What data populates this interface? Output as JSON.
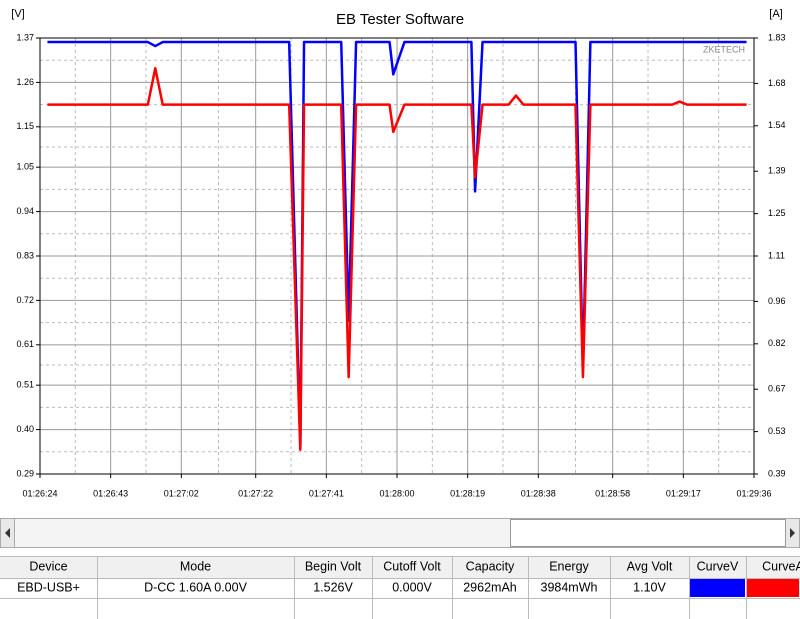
{
  "chart_data": {
    "type": "line",
    "title": "EB Tester Software",
    "y_label": "[V]",
    "y2_label": "[A]",
    "watermark": "ZKETECH",
    "x": [
      "01:26:26",
      "01:26:53",
      "01:26:55",
      "01:26:57",
      "01:27:31",
      "01:27:34",
      "01:27:35",
      "01:27:45",
      "01:27:47",
      "01:27:49",
      "01:27:58",
      "01:27:59",
      "01:28:02",
      "01:28:20",
      "01:28:21",
      "01:28:23",
      "01:28:30",
      "01:28:32",
      "01:28:34",
      "01:28:48",
      "01:28:50",
      "01:28:52",
      "01:29:14",
      "01:29:16",
      "01:29:18",
      "01:29:34"
    ],
    "series": [
      {
        "name": "CurveV",
        "color": "#0000ff",
        "values": [
          1.36,
          1.36,
          1.35,
          1.36,
          1.36,
          0.36,
          1.36,
          1.36,
          0.67,
          1.36,
          1.36,
          1.28,
          1.36,
          1.36,
          0.99,
          1.36,
          1.36,
          1.36,
          1.36,
          1.36,
          0.55,
          1.36,
          1.36,
          1.36,
          1.36,
          1.36
        ]
      },
      {
        "name": "CurveA",
        "color": "#ff0000",
        "axis": "y2",
        "values": [
          1.61,
          1.61,
          1.73,
          1.61,
          1.61,
          0.47,
          1.61,
          1.61,
          0.71,
          1.61,
          1.61,
          1.52,
          1.61,
          1.61,
          1.37,
          1.61,
          1.61,
          1.64,
          1.61,
          1.61,
          0.71,
          1.61,
          1.61,
          1.62,
          1.61,
          1.61
        ]
      }
    ],
    "xlim": [
      "01:26:24",
      "01:29:36"
    ],
    "xticks": [
      "01:26:24",
      "01:26:43",
      "01:27:02",
      "01:27:22",
      "01:27:41",
      "01:28:00",
      "01:28:19",
      "01:28:38",
      "01:28:58",
      "01:29:17",
      "01:29:36"
    ],
    "ylim": [
      0.29,
      1.37
    ],
    "yticks": [
      {
        "value": 1.37,
        "label": "1.37"
      },
      {
        "value": 1.26,
        "label": "1.26"
      },
      {
        "value": 1.15,
        "label": "1.15"
      },
      {
        "value": 1.05,
        "label": "1.05"
      },
      {
        "value": 0.94,
        "label": "0.94"
      },
      {
        "value": 0.83,
        "label": "0.83"
      },
      {
        "value": 0.72,
        "label": "0.72"
      },
      {
        "value": 0.61,
        "label": "0.61"
      },
      {
        "value": 0.51,
        "label": "0.51"
      },
      {
        "value": 0.4,
        "label": "0.40"
      },
      {
        "value": 0.29,
        "label": "0.29"
      }
    ],
    "y2lim": [
      0.39,
      1.83
    ],
    "y2ticks": [
      {
        "value": 1.83,
        "label": "1.83"
      },
      {
        "value": 1.68,
        "label": "1.68"
      },
      {
        "value": 1.54,
        "label": "1.54"
      },
      {
        "value": 1.39,
        "label": "1.39"
      },
      {
        "value": 1.25,
        "label": "1.25"
      },
      {
        "value": 1.11,
        "label": "1.11"
      },
      {
        "value": 0.96,
        "label": "0.96"
      },
      {
        "value": 0.82,
        "label": "0.82"
      },
      {
        "value": 0.67,
        "label": "0.67"
      },
      {
        "value": 0.53,
        "label": "0.53"
      },
      {
        "value": 0.39,
        "label": "0.39"
      }
    ],
    "grid": true
  },
  "table": {
    "columns": [
      "Device",
      "Mode",
      "Begin Volt",
      "Cutoff Volt",
      "Capacity",
      "Energy",
      "Avg Volt",
      "CurveV",
      "CurveA"
    ],
    "rows": [
      [
        "EBD-USB+",
        "D-CC  1.60A  0.00V",
        "1.526V",
        "0.000V",
        "2962mAh",
        "3984mWh",
        "1.10V"
      ]
    ]
  }
}
